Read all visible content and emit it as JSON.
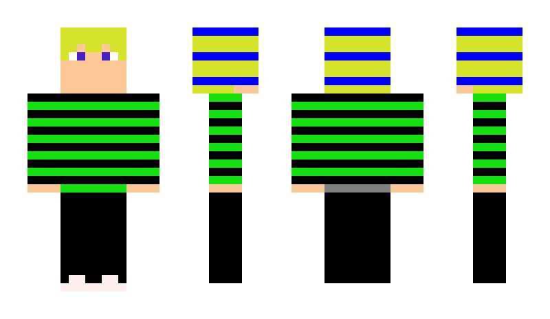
{
  "views": [
    "front",
    "left-side",
    "back",
    "right-side"
  ],
  "colors": {
    "hair": "#d6e32b",
    "skin": "#fdc998",
    "eye_white": "#ffffff",
    "eye_iris": "#4420c4",
    "shirt_black": "#000000",
    "shirt_green": "#15e30f",
    "pants": "#000000",
    "shoe": "#fdeeee",
    "hat_blue": "#0000ff",
    "belt_back": "#808080"
  }
}
